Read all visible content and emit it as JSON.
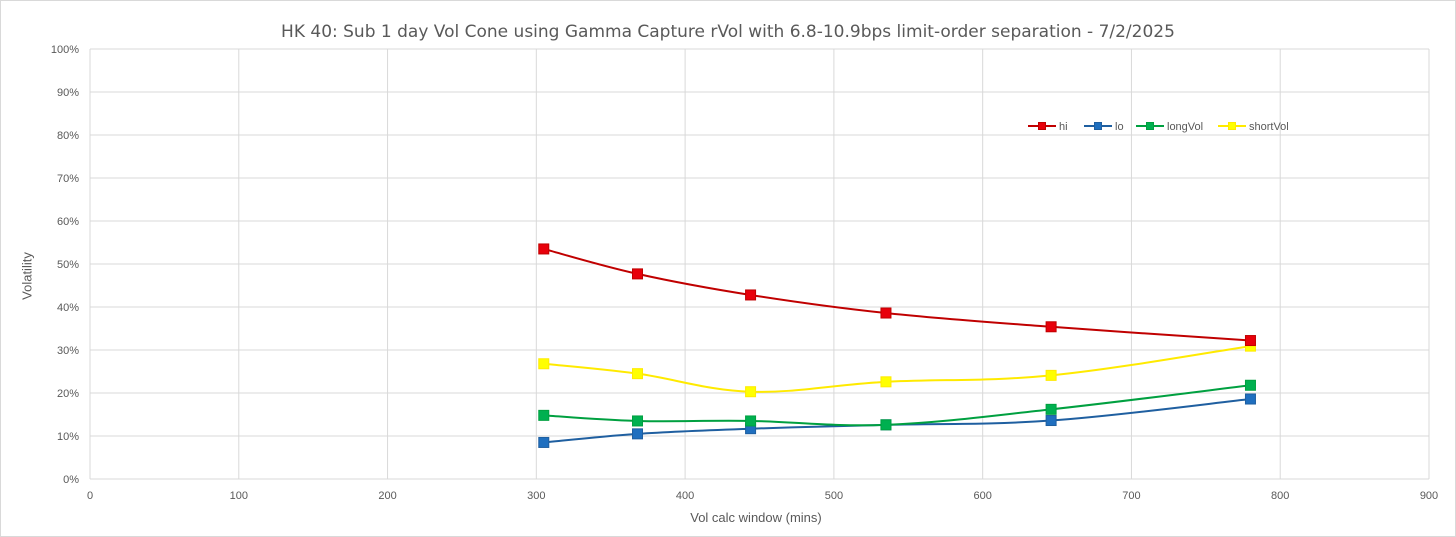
{
  "chart_data": {
    "type": "line",
    "title": "HK 40: Sub 1 day Vol Cone using Gamma Capture rVol with 6.8-10.9bps limit-order separation - 7/2/2025",
    "xlabel": "Vol calc window (mins)",
    "ylabel": "Volatility",
    "xlim": [
      0,
      900
    ],
    "ylim": [
      0,
      1
    ],
    "x_ticks": [
      "0",
      "100",
      "200",
      "300",
      "400",
      "500",
      "600",
      "700",
      "800",
      "900"
    ],
    "y_ticks": [
      "0%",
      "10%",
      "20%",
      "30%",
      "40%",
      "50%",
      "60%",
      "70%",
      "80%",
      "90%",
      "100%"
    ],
    "grid": true,
    "legend_position": "top-right",
    "x": [
      305,
      368,
      444,
      535,
      646,
      780
    ],
    "series": [
      {
        "name": "hi",
        "color": "#c00000",
        "marker_fill": "#e8000b",
        "values": [
          0.535,
          0.477,
          0.428,
          0.386,
          0.354,
          0.322
        ]
      },
      {
        "name": "lo",
        "color": "#1f5fa0",
        "marker_fill": "#1f6fbf",
        "values": [
          0.085,
          0.105,
          0.117,
          0.126,
          0.136,
          0.186
        ]
      },
      {
        "name": "longVol",
        "color": "#00a040",
        "marker_fill": "#00b050",
        "values": [
          0.148,
          0.135,
          0.135,
          0.126,
          0.162,
          0.218
        ]
      },
      {
        "name": "shortVol",
        "color": "#ffea00",
        "marker_fill": "#ffff00",
        "values": [
          0.268,
          0.245,
          0.203,
          0.226,
          0.241,
          0.309
        ]
      }
    ]
  }
}
